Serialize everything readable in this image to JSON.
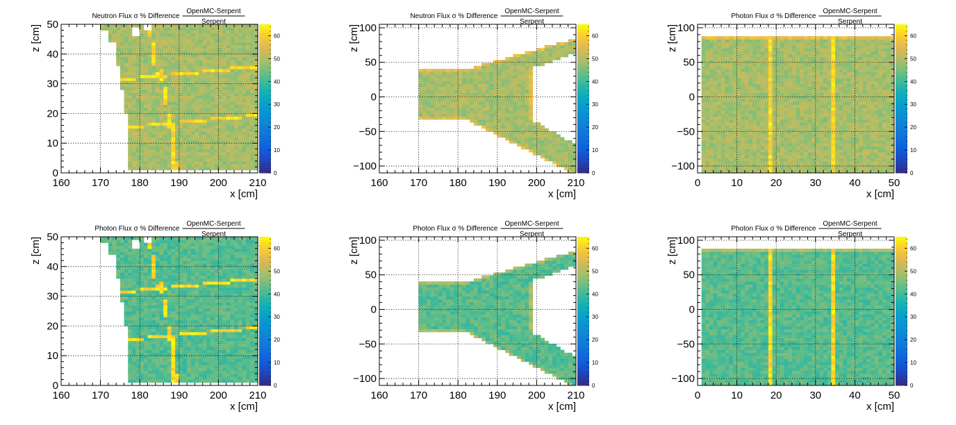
{
  "chart_data": [
    {
      "type": "heatmap",
      "title_main": "Neutron Flux σ % Difference",
      "title_frac_num": "OpenMC-Serpent",
      "title_frac_den": "Serpent",
      "xlabel": "x [cm]",
      "ylabel": "z [cm]",
      "xlim": [
        160,
        210
      ],
      "ylim": [
        0,
        50
      ],
      "xticks": [
        "160",
        "170",
        "180",
        "190",
        "200",
        "210"
      ],
      "yticks": [
        "0",
        "10",
        "20",
        "30",
        "40",
        "50"
      ],
      "colorbar": {
        "range": [
          0,
          65
        ],
        "ticks": [
          "0",
          "10",
          "20",
          "30",
          "40",
          "50",
          "60"
        ]
      },
      "grid": true,
      "base_value": 49
    },
    {
      "type": "heatmap",
      "title_main": "Neutron Flux σ % Difference",
      "title_frac_num": "OpenMC-Serpent",
      "title_frac_den": "Serpent",
      "xlabel": "x [cm]",
      "ylabel": "z [cm]",
      "xlim": [
        160,
        210
      ],
      "ylim": [
        -110,
        105
      ],
      "xticks": [
        "160",
        "170",
        "180",
        "190",
        "200",
        "210"
      ],
      "yticks": [
        "−100",
        "−50",
        "0",
        "50",
        "100"
      ],
      "colorbar": {
        "range": [
          0,
          65
        ],
        "ticks": [
          "0",
          "10",
          "20",
          "30",
          "40",
          "50",
          "60"
        ]
      },
      "grid": true,
      "base_value": 49
    },
    {
      "type": "heatmap",
      "title_main": "Photon Flux σ % Difference",
      "title_frac_num": "OpenMC-Serpent",
      "title_frac_den": "Serpent",
      "xlabel": "x [cm]",
      "ylabel": "z [cm]",
      "xlim": [
        0,
        50
      ],
      "ylim": [
        -110,
        105
      ],
      "xticks": [
        "0",
        "10",
        "20",
        "30",
        "40",
        "50"
      ],
      "yticks": [
        "−100",
        "−50",
        "0",
        "50",
        "100"
      ],
      "colorbar": {
        "range": [
          0,
          65
        ],
        "ticks": [
          "0",
          "10",
          "20",
          "30",
          "40",
          "50",
          "60"
        ]
      },
      "grid": true,
      "base_value": 49
    },
    {
      "type": "heatmap",
      "title_main": "Photon Flux σ % Difference",
      "title_frac_num": "OpenMC-Serpent",
      "title_frac_den": "Serpent",
      "xlabel": "x [cm]",
      "ylabel": "z [cm]",
      "xlim": [
        160,
        210
      ],
      "ylim": [
        0,
        50
      ],
      "xticks": [
        "160",
        "170",
        "180",
        "190",
        "200",
        "210"
      ],
      "yticks": [
        "0",
        "10",
        "20",
        "30",
        "40",
        "50"
      ],
      "colorbar": {
        "range": [
          0,
          65
        ],
        "ticks": [
          "0",
          "10",
          "20",
          "30",
          "40",
          "50",
          "60"
        ]
      },
      "grid": true,
      "base_value": 42
    },
    {
      "type": "heatmap",
      "title_main": "Photon Flux σ % Difference",
      "title_frac_num": "OpenMC-Serpent",
      "title_frac_den": "Serpent",
      "xlabel": "x [cm]",
      "ylabel": "z [cm]",
      "xlim": [
        160,
        210
      ],
      "ylim": [
        -110,
        105
      ],
      "xticks": [
        "160",
        "170",
        "180",
        "190",
        "200",
        "210"
      ],
      "yticks": [
        "−100",
        "−50",
        "0",
        "50",
        "100"
      ],
      "colorbar": {
        "range": [
          0,
          65
        ],
        "ticks": [
          "0",
          "10",
          "20",
          "30",
          "40",
          "50",
          "60"
        ]
      },
      "grid": true,
      "base_value": 42
    },
    {
      "type": "heatmap",
      "title_main": "Photon Flux σ % Difference",
      "title_frac_num": "OpenMC-Serpent",
      "title_frac_den": "Serpent",
      "xlabel": "x [cm]",
      "ylabel": "z [cm]",
      "xlim": [
        0,
        50
      ],
      "ylim": [
        -110,
        105
      ],
      "xticks": [
        "0",
        "10",
        "20",
        "30",
        "40",
        "50"
      ],
      "yticks": [
        "−100",
        "−50",
        "0",
        "50",
        "100"
      ],
      "colorbar": {
        "range": [
          0,
          65
        ],
        "ticks": [
          "0",
          "10",
          "20",
          "30",
          "40",
          "50",
          "60"
        ]
      },
      "grid": true,
      "base_value": 42
    }
  ]
}
